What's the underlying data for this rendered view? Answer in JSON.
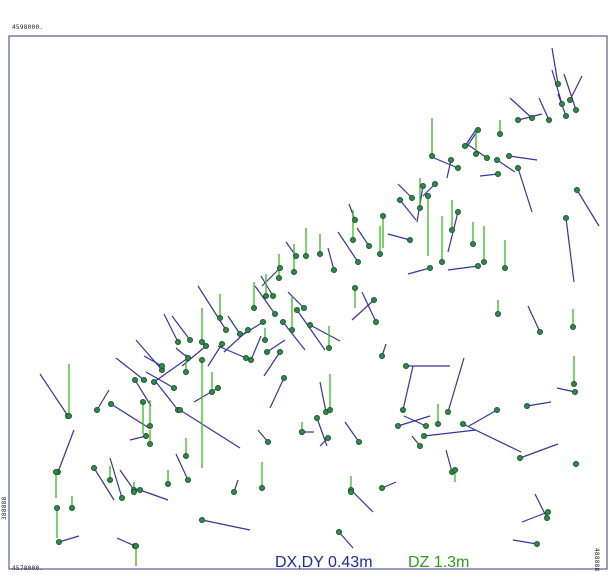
{
  "map": {
    "north_label": "4598000.",
    "south_label": "4578000.",
    "west_label": "388888",
    "east_label": "488888"
  },
  "legend": {
    "dxdy_label": "DX,DY 0.43m",
    "dz_label": "DZ 1.3m"
  },
  "colors": {
    "frame": "#3a3a8a",
    "horizontal_vector": "#35359c",
    "vertical_vector": "#3cb81e",
    "station_fill": "#2a8a48",
    "station_stroke": "#1c4a2a"
  }
}
